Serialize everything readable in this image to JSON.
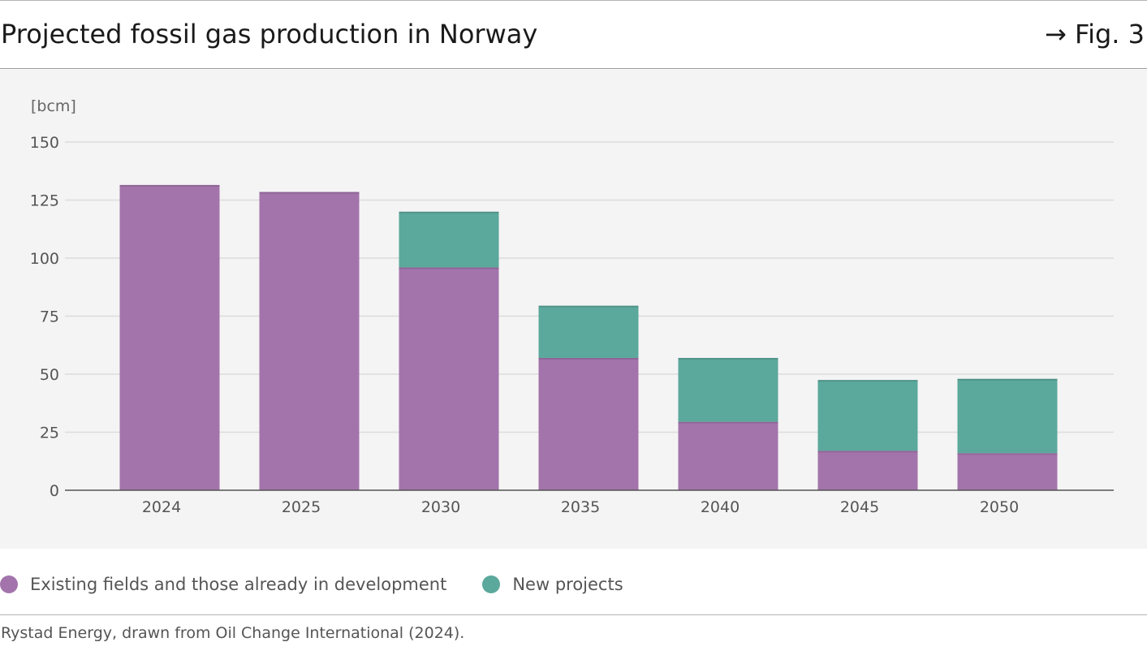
{
  "header": {
    "title": "Projected fossil gas production in Norway",
    "figure_ref": "→ Fig. 3"
  },
  "chart_data": {
    "type": "bar",
    "stacked": true,
    "title": "Projected fossil gas production in Norway",
    "ylabel": "[bcm]",
    "xlabel": "",
    "ylim": [
      0,
      150
    ],
    "yticks": [
      0,
      25,
      50,
      75,
      100,
      125,
      150
    ],
    "grid": true,
    "legend_position": "bottom-left",
    "categories": [
      "2024",
      "2025",
      "2030",
      "2035",
      "2040",
      "2045",
      "2050"
    ],
    "series": [
      {
        "name": "Existing fields and those already in development",
        "color": "#a374ac",
        "values": [
          131.5,
          128.5,
          96,
          57,
          29.5,
          17,
          16
        ]
      },
      {
        "name": "New projects",
        "color": "#5ba89c",
        "values": [
          0,
          0,
          24,
          22.5,
          27.5,
          30.5,
          32
        ]
      }
    ]
  },
  "footer": {
    "source": "Rystad Energy, drawn from Oil Change International (2024)."
  }
}
